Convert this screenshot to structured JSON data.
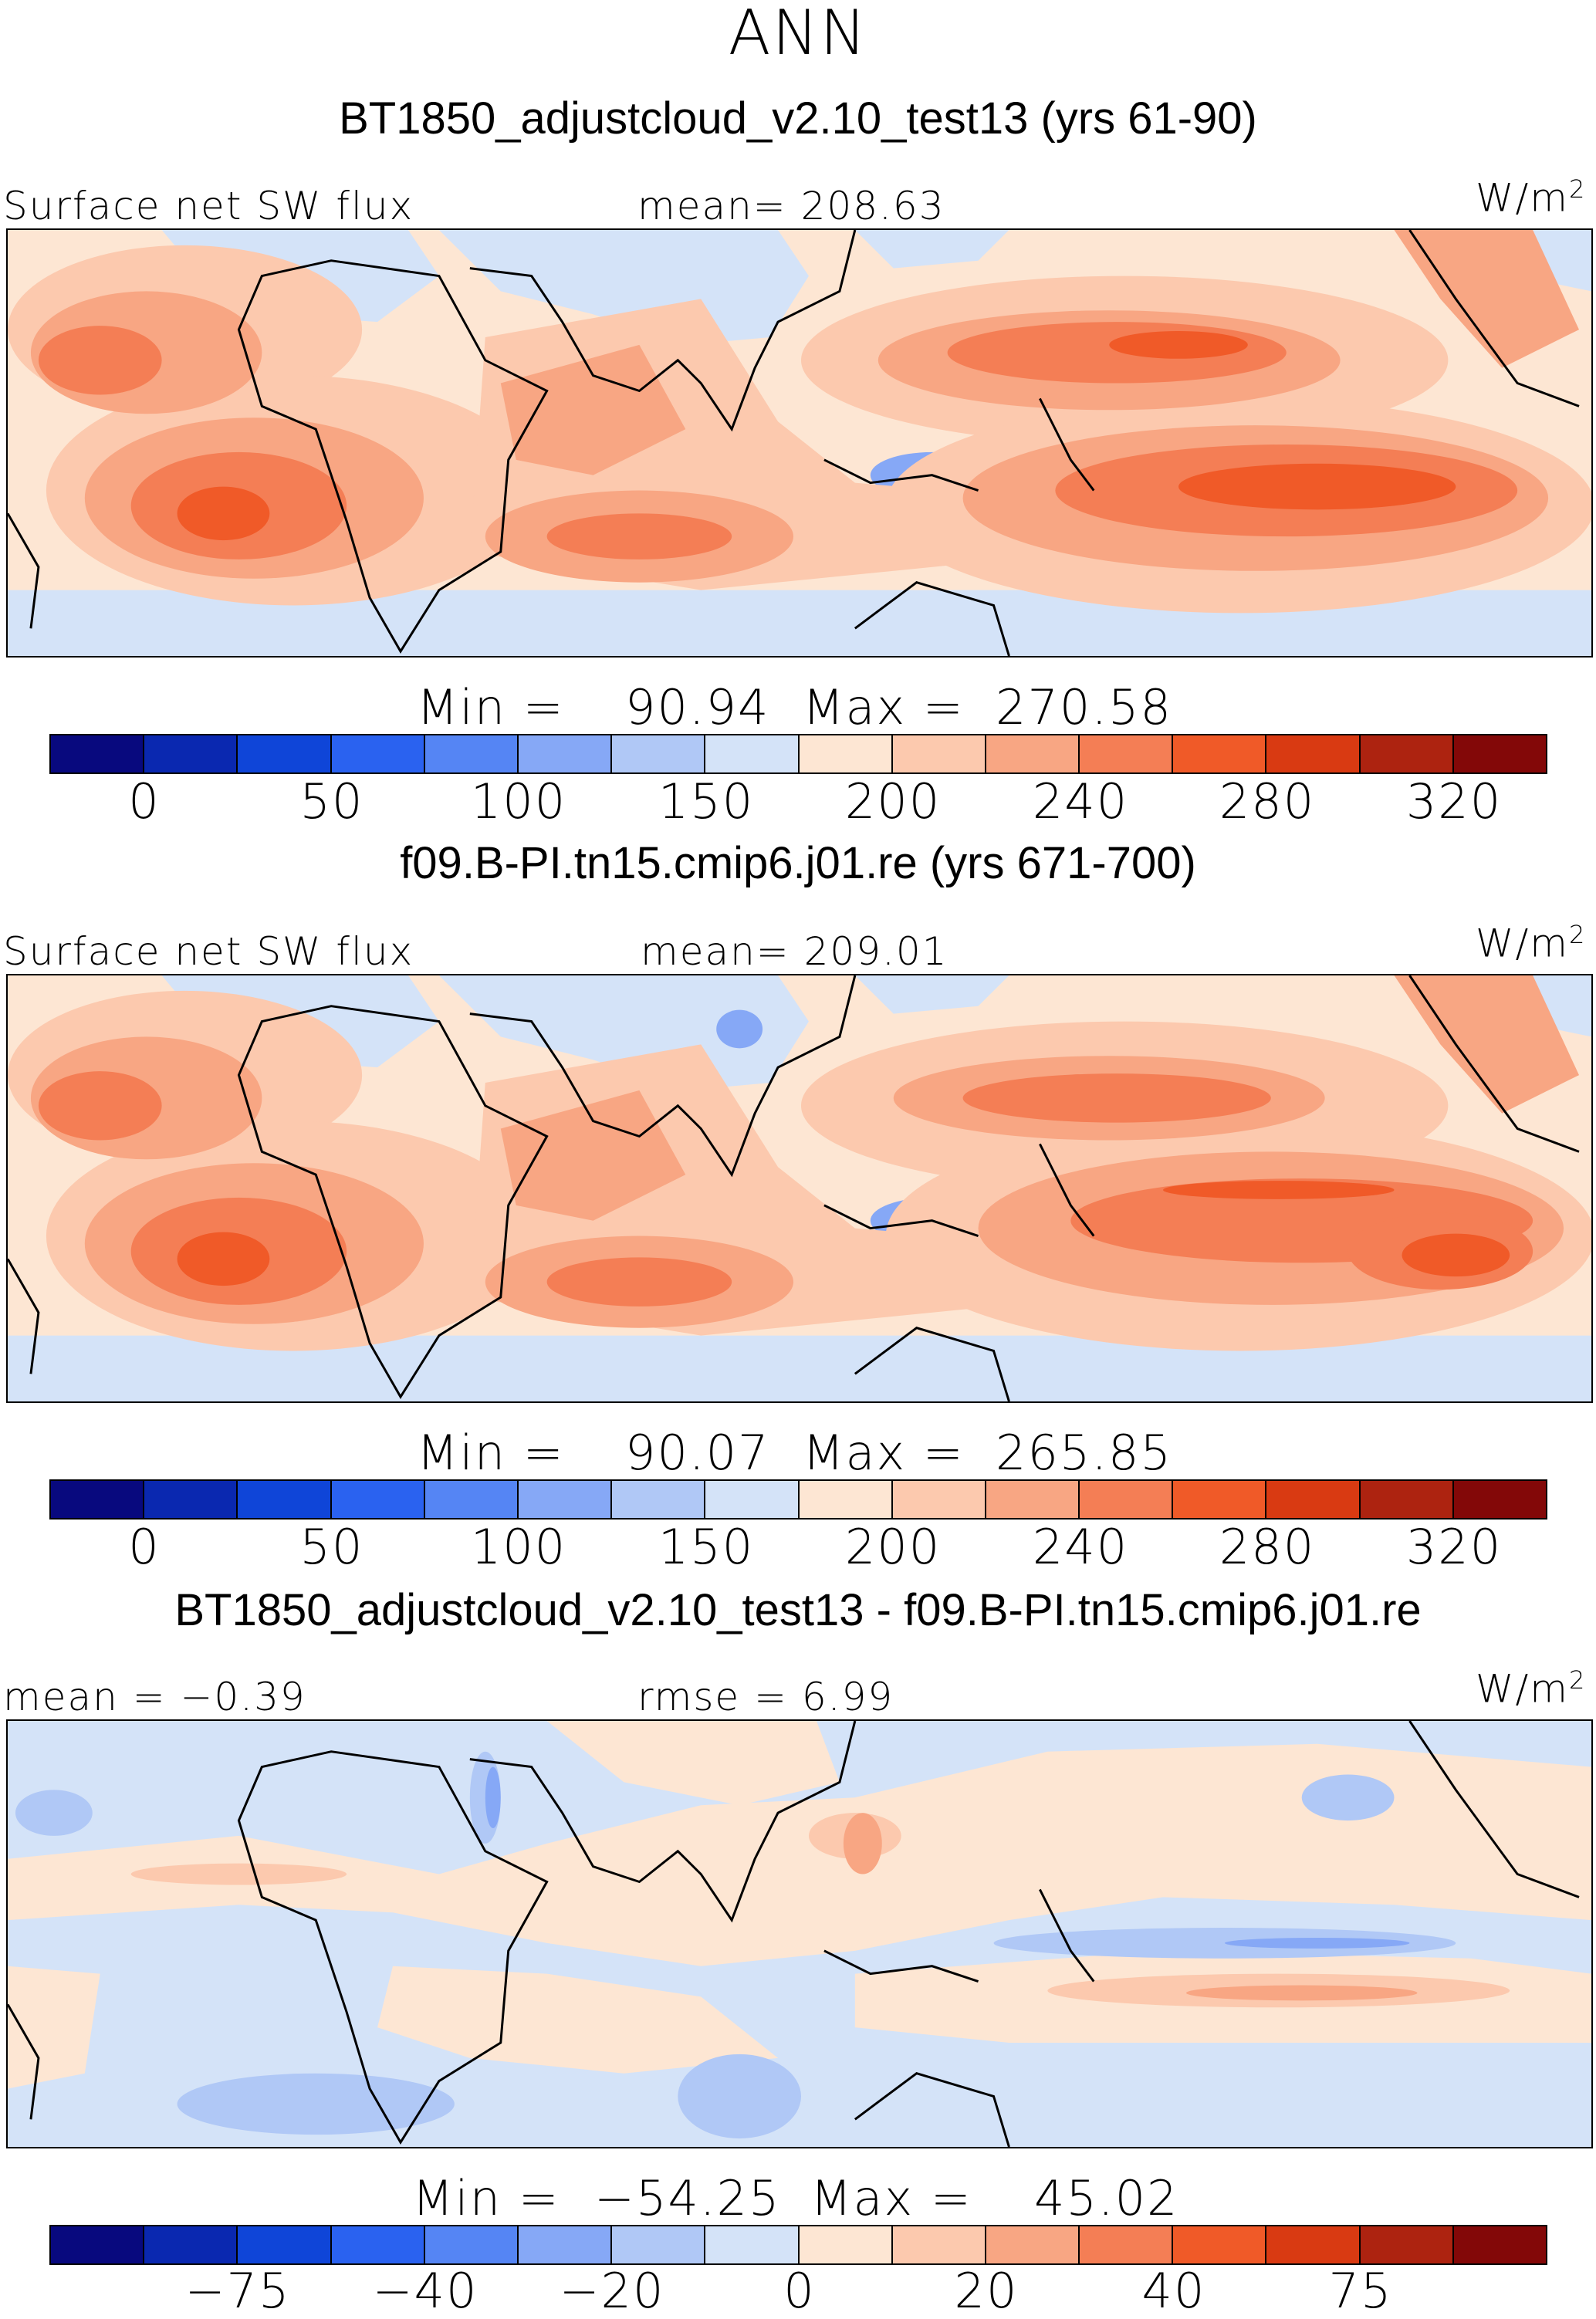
{
  "season": "ANN",
  "panels": [
    {
      "title": "BT1850_adjustcloud_v2.10_test13 (yrs 61-90)",
      "left_label": "Surface net SW flux",
      "center_label": "mean= 208.63",
      "units": "W/m",
      "units_sup": "2",
      "min_label": "Min  =",
      "min_value": "90.94",
      "max_label": "Max  =",
      "max_value": "270.58",
      "ticks": [
        "0",
        "50",
        "100",
        "150",
        "200",
        "240",
        "280",
        "320"
      ]
    },
    {
      "title": "f09.B-PI.tn15.cmip6.j01.re (yrs 671-700)",
      "left_label": "Surface net SW flux",
      "center_label": "mean= 209.01",
      "units": "W/m",
      "units_sup": "2",
      "min_label": "Min  =",
      "min_value": "90.07",
      "max_label": "Max  =",
      "max_value": "265.85",
      "ticks": [
        "0",
        "50",
        "100",
        "150",
        "200",
        "240",
        "280",
        "320"
      ]
    },
    {
      "title": "BT1850_adjustcloud_v2.10_test13 - f09.B-PI.tn15.cmip6.j01.re",
      "left_label": "mean =   −0.39",
      "center_label": "rmse =    6.99",
      "units": "W/m",
      "units_sup": "2",
      "min_label": "Min  =",
      "min_value": "−54.25",
      "max_label": "Max  =",
      "max_value": "45.02",
      "ticks": [
        "−75",
        "−40",
        "−20",
        "0",
        "20",
        "40",
        "75"
      ]
    }
  ],
  "colorbar_colors": [
    "#08097e",
    "#0a28b0",
    "#0f45d8",
    "#2a62f0",
    "#5585f4",
    "#86a8f6",
    "#b0c8f6",
    "#d4e3f8",
    "#fde6d3",
    "#fcc9ae",
    "#f8a683",
    "#f47e55",
    "#f05a28",
    "#d93a12",
    "#ad2310",
    "#830808"
  ]
}
